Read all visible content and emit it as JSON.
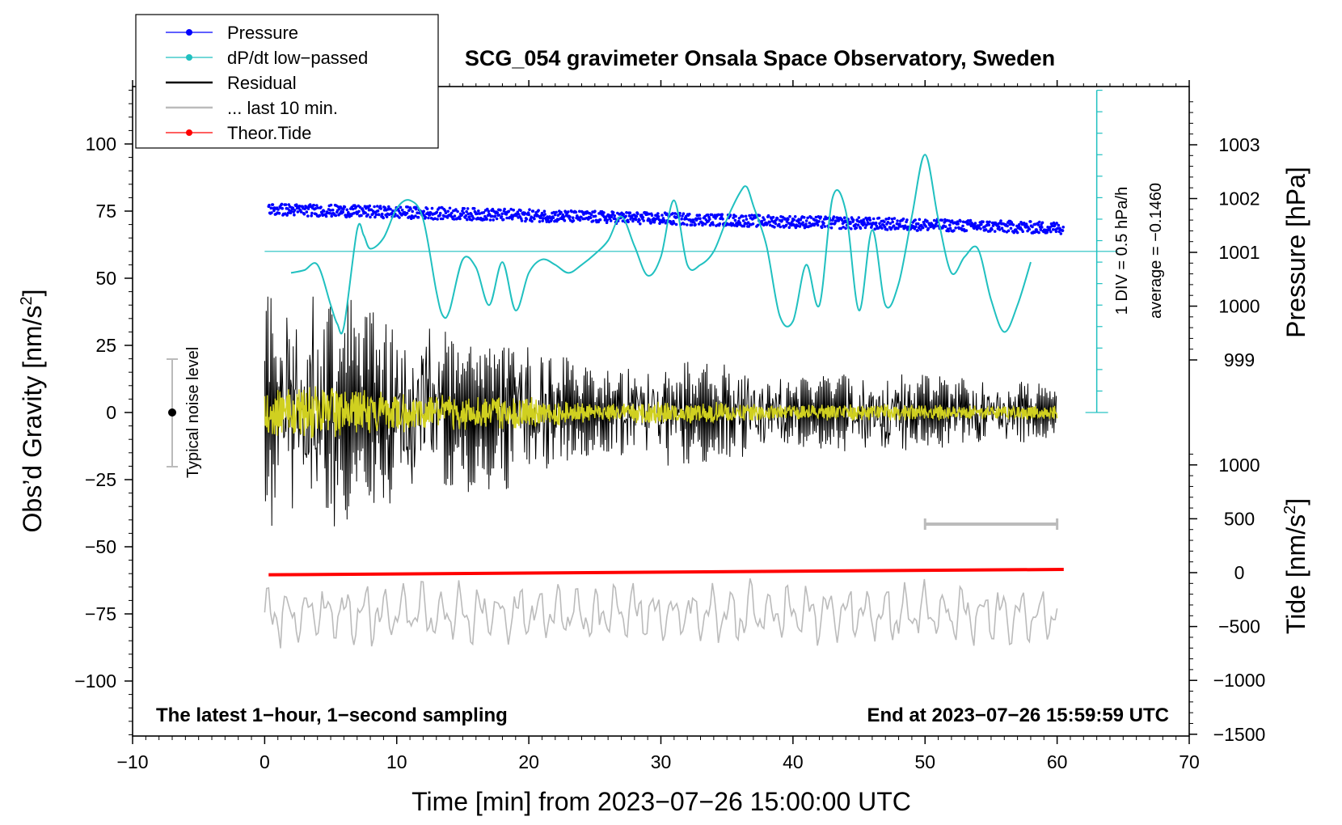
{
  "chart_data": {
    "type": "line",
    "title": "SCG_054 gravimeter Onsala Space Observatory, Sweden",
    "xlabel": "Time [min] from 2023−07−26 15:00:00 UTC",
    "ylabel_left_main": "Obs’d Gravity [nm/s",
    "ylabel_left_sup": "2",
    "ylabel_left_end": "]",
    "ylabel_right_top": "Pressure [hPa]",
    "ylabel_right_bottom_main": "Tide [nm/s",
    "ylabel_right_bottom_sup": "2",
    "ylabel_right_bottom_end": "]",
    "xlim": [
      -10,
      70
    ],
    "ylim": [
      -120,
      120
    ],
    "x_ticks": [
      "−10",
      "0",
      "10",
      "20",
      "30",
      "40",
      "50",
      "60",
      "70"
    ],
    "y_ticks": [
      "100",
      "75",
      "50",
      "25",
      "0",
      "−25",
      "−50",
      "−75",
      "−100"
    ],
    "pressure_ticks": [
      "1003",
      "1002",
      "1001",
      "1000",
      "999"
    ],
    "tide_ticks": [
      "1000",
      "500",
      "0",
      "−500",
      "−1000",
      "−1500"
    ],
    "legend": [
      {
        "label": "Pressure",
        "color": "#0000ff",
        "marker": true
      },
      {
        "label": "dP/dt low−passed",
        "color": "#20c0c0",
        "marker": true
      },
      {
        "label": "Residual",
        "color": "#000000",
        "marker": false
      },
      {
        "label": "... last 10 min.",
        "color": "#bbbbbb",
        "marker": false
      },
      {
        "label": "Theor.Tide",
        "color": "#ff0000",
        "marker": true
      }
    ],
    "noise_label": "Typical noise level",
    "noise_range": [
      -20,
      20
    ],
    "dpdt_scale_label": "1 DIV = 0.5 hPa/h",
    "dpdt_average_label": "average = −0.1460",
    "note_left": "The latest 1−hour, 1−second sampling",
    "note_right": "End at 2023−07−26 15:59:59 UTC",
    "last10_window_min": [
      50,
      60
    ],
    "series": [
      {
        "name": "Pressure",
        "unit": "hPa",
        "start": 1001.8,
        "end": 1001.45
      },
      {
        "name": "dP/dt low-passed",
        "x": [
          2,
          3,
          4,
          5,
          5.5,
          6,
          7,
          7.5,
          8,
          9,
          10,
          11,
          12,
          13,
          13.5,
          14,
          15,
          16,
          17,
          18,
          19,
          20,
          21,
          22,
          23,
          24,
          25,
          26,
          27,
          28,
          29,
          30,
          31,
          32,
          33,
          34,
          35,
          36,
          36.5,
          37,
          38,
          39,
          40,
          41,
          42,
          43,
          44,
          45,
          46,
          47,
          48,
          49,
          50,
          51,
          52,
          53,
          54,
          55,
          56,
          57,
          58
        ],
        "y": [
          52,
          53,
          55,
          40,
          33,
          32,
          68,
          66,
          61,
          65,
          76,
          79,
          72,
          45,
          36,
          38,
          57,
          54,
          40,
          56,
          38,
          52,
          57,
          55,
          52,
          55,
          59,
          64,
          73,
          62,
          51,
          58,
          79,
          55,
          55,
          60,
          72,
          82,
          84,
          77,
          62,
          36,
          34,
          55,
          40,
          80,
          75,
          38,
          68,
          40,
          48,
          73,
          96,
          72,
          52,
          58,
          61,
          42,
          30,
          40,
          56
        ]
      },
      {
        "name": "Residual",
        "envelope": [
          [
            0,
            45
          ],
          [
            5,
            45
          ],
          [
            10,
            35
          ],
          [
            15,
            30
          ],
          [
            20,
            28
          ],
          [
            25,
            15
          ],
          [
            30,
            20
          ],
          [
            35,
            18
          ],
          [
            40,
            13
          ],
          [
            45,
            15
          ],
          [
            50,
            14
          ],
          [
            55,
            12
          ],
          [
            60,
            11
          ]
        ]
      },
      {
        "name": "... last 10 min.",
        "offset": -75,
        "amplitude": 12
      },
      {
        "name": "Theor.Tide",
        "unit": "nm/s2",
        "start_tide": -20,
        "end_tide": 30
      }
    ]
  }
}
